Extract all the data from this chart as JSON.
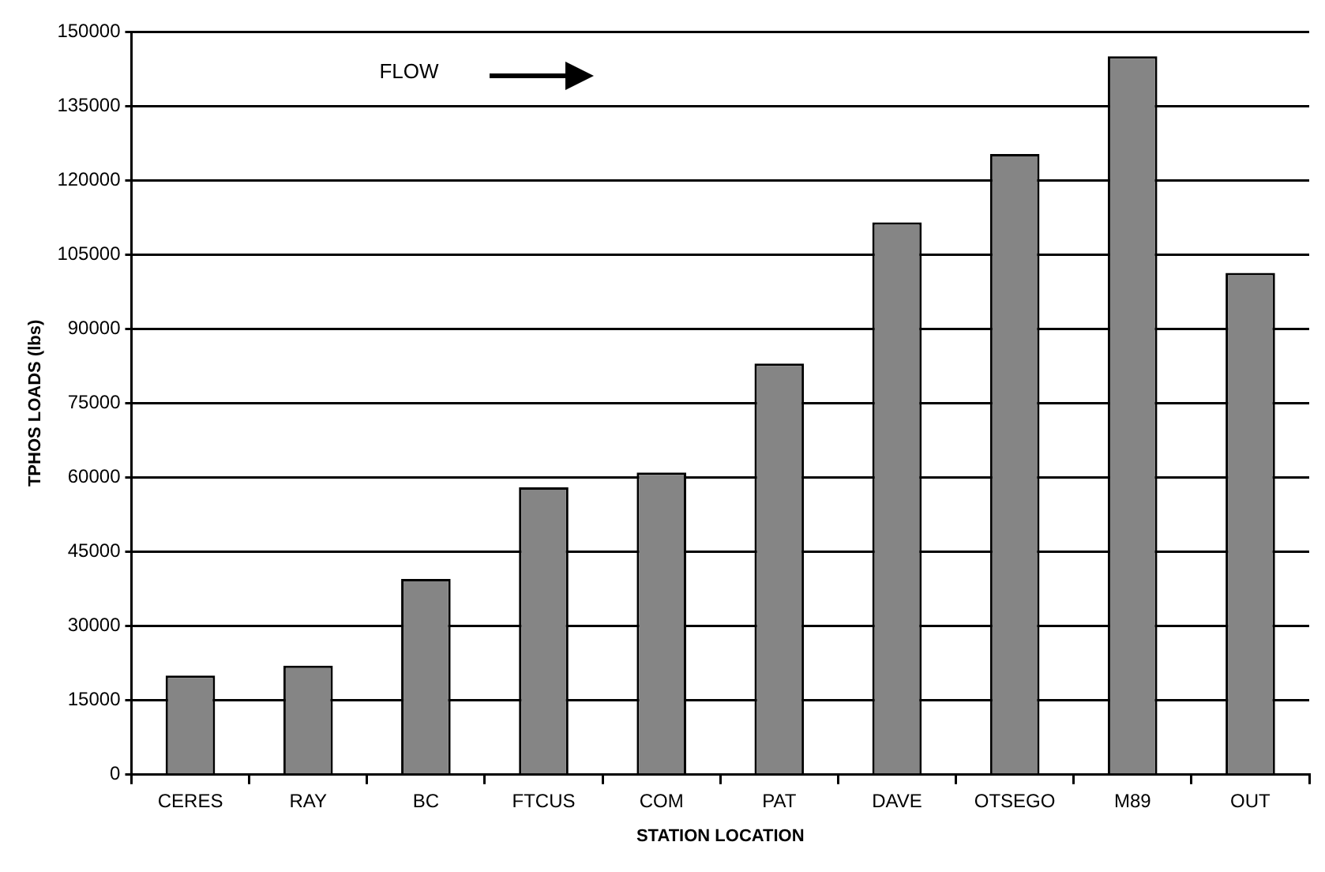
{
  "chart_data": {
    "type": "bar",
    "xlabel": "STATION LOCATION",
    "ylabel": "TPHOS LOADS (lbs)",
    "categories": [
      "CERES",
      "RAY",
      "BC",
      "FTCUS",
      "COM",
      "PAT",
      "DAVE",
      "OTSEGO",
      "M89",
      "OUT"
    ],
    "values": [
      20000,
      22000,
      39500,
      58000,
      61000,
      83000,
      111500,
      125300,
      145000,
      101300
    ],
    "color": "#858585",
    "ylim": [
      0,
      150000
    ],
    "yticks": [
      0,
      15000,
      30000,
      45000,
      60000,
      75000,
      90000,
      105000,
      120000,
      135000,
      150000
    ],
    "grid": "y",
    "legend": false,
    "annotations": [
      "FLOW"
    ]
  }
}
